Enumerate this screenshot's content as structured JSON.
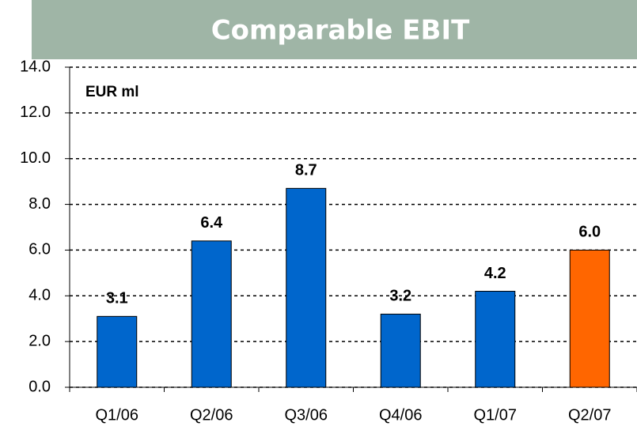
{
  "chart_data": {
    "type": "bar",
    "title": "Comparable EBIT",
    "subtitle": "EUR ml",
    "categories": [
      "Q1/06",
      "Q2/06",
      "Q3/06",
      "Q4/06",
      "Q1/07",
      "Q2/07"
    ],
    "values": [
      3.1,
      6.4,
      8.7,
      3.2,
      4.2,
      6.0
    ],
    "value_labels": [
      "3.1",
      "6.4",
      "8.7",
      "3.2",
      "4.2",
      "6.0"
    ],
    "colors": [
      "#0066cc",
      "#0066cc",
      "#0066cc",
      "#0066cc",
      "#0066cc",
      "#ff6600"
    ],
    "ylim": [
      0,
      14
    ],
    "yticks": [
      {
        "value": 0,
        "label": "0.0"
      },
      {
        "value": 2,
        "label": "2.0"
      },
      {
        "value": 4,
        "label": "4.0"
      },
      {
        "value": 6,
        "label": "6.0"
      },
      {
        "value": 8,
        "label": "8.0"
      },
      {
        "value": 10,
        "label": "10.0"
      },
      {
        "value": 12,
        "label": "12.0"
      },
      {
        "value": 14,
        "label": "14.0"
      }
    ],
    "grid": true
  }
}
